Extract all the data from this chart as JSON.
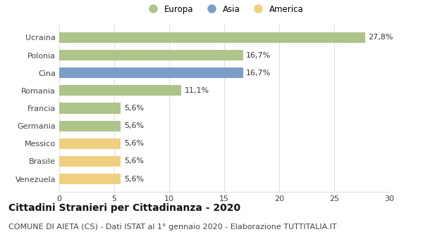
{
  "categories": [
    "Venezuela",
    "Brasile",
    "Messico",
    "Germania",
    "Francia",
    "Romania",
    "Cina",
    "Polonia",
    "Ucraina"
  ],
  "values": [
    5.6,
    5.6,
    5.6,
    5.6,
    5.6,
    11.1,
    16.7,
    16.7,
    27.8
  ],
  "colors": [
    "#f0d080",
    "#f0d080",
    "#f0d080",
    "#adc48a",
    "#adc48a",
    "#adc48a",
    "#7b9ec8",
    "#adc48a",
    "#adc48a"
  ],
  "labels": [
    "5,6%",
    "5,6%",
    "5,6%",
    "5,6%",
    "5,6%",
    "11,1%",
    "16,7%",
    "16,7%",
    "27,8%"
  ],
  "legend": [
    {
      "label": "Europa",
      "color": "#adc48a"
    },
    {
      "label": "Asia",
      "color": "#7b9ec8"
    },
    {
      "label": "America",
      "color": "#f0d080"
    }
  ],
  "xlim": [
    0,
    30
  ],
  "xticks": [
    0,
    5,
    10,
    15,
    20,
    25,
    30
  ],
  "title": "Cittadini Stranieri per Cittadinanza - 2020",
  "subtitle": "COMUNE DI AIETA (CS) - Dati ISTAT al 1° gennaio 2020 - Elaborazione TUTTITALIA.IT",
  "title_fontsize": 10,
  "subtitle_fontsize": 8,
  "label_fontsize": 8,
  "tick_fontsize": 8,
  "legend_fontsize": 8.5,
  "bar_height": 0.6,
  "background_color": "#ffffff",
  "grid_color": "#e0e0e0"
}
